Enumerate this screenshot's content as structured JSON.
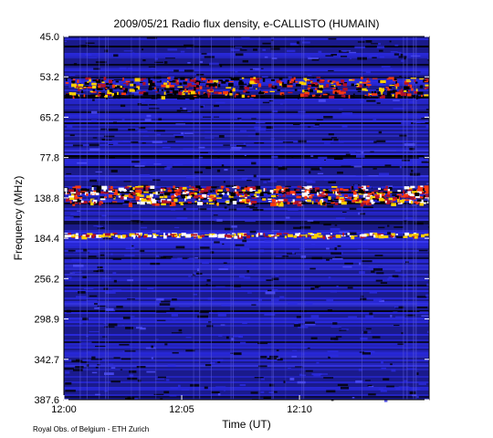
{
  "chart_data": {
    "type": "heatmap",
    "title": "2009/05/21  Radio flux density, e-CALLISTO (HUMAIN)",
    "xlabel": "Time (UT)",
    "ylabel": "Frequency (MHz)",
    "x_ticks": [
      "12:00",
      "12:05",
      "12:10"
    ],
    "x_range_minutes": [
      0,
      15.5
    ],
    "x_tick_minutes": [
      0,
      5,
      10
    ],
    "y_ticks": [
      "45.0",
      "53.2",
      "65.2",
      "77.8",
      "138.8",
      "184.4",
      "256.2",
      "298.9",
      "342.7",
      "387.6"
    ],
    "y_direction": "increasing-downward",
    "colormap": [
      "#000000",
      "#1a1a8c",
      "#2a2ae0",
      "#b0102a",
      "#ff3a10",
      "#ffd000",
      "#ffffff"
    ],
    "features": [
      {
        "band_mhz": [
          53.2,
          59.0
        ],
        "intensity": "high"
      },
      {
        "band_mhz": [
          120.0,
          145.0
        ],
        "intensity": "very-high"
      },
      {
        "band_mhz": [
          178.0,
          182.0
        ],
        "intensity": "medium"
      }
    ]
  },
  "footer": "Royal Obs. of Belgium - ETH Zurich"
}
